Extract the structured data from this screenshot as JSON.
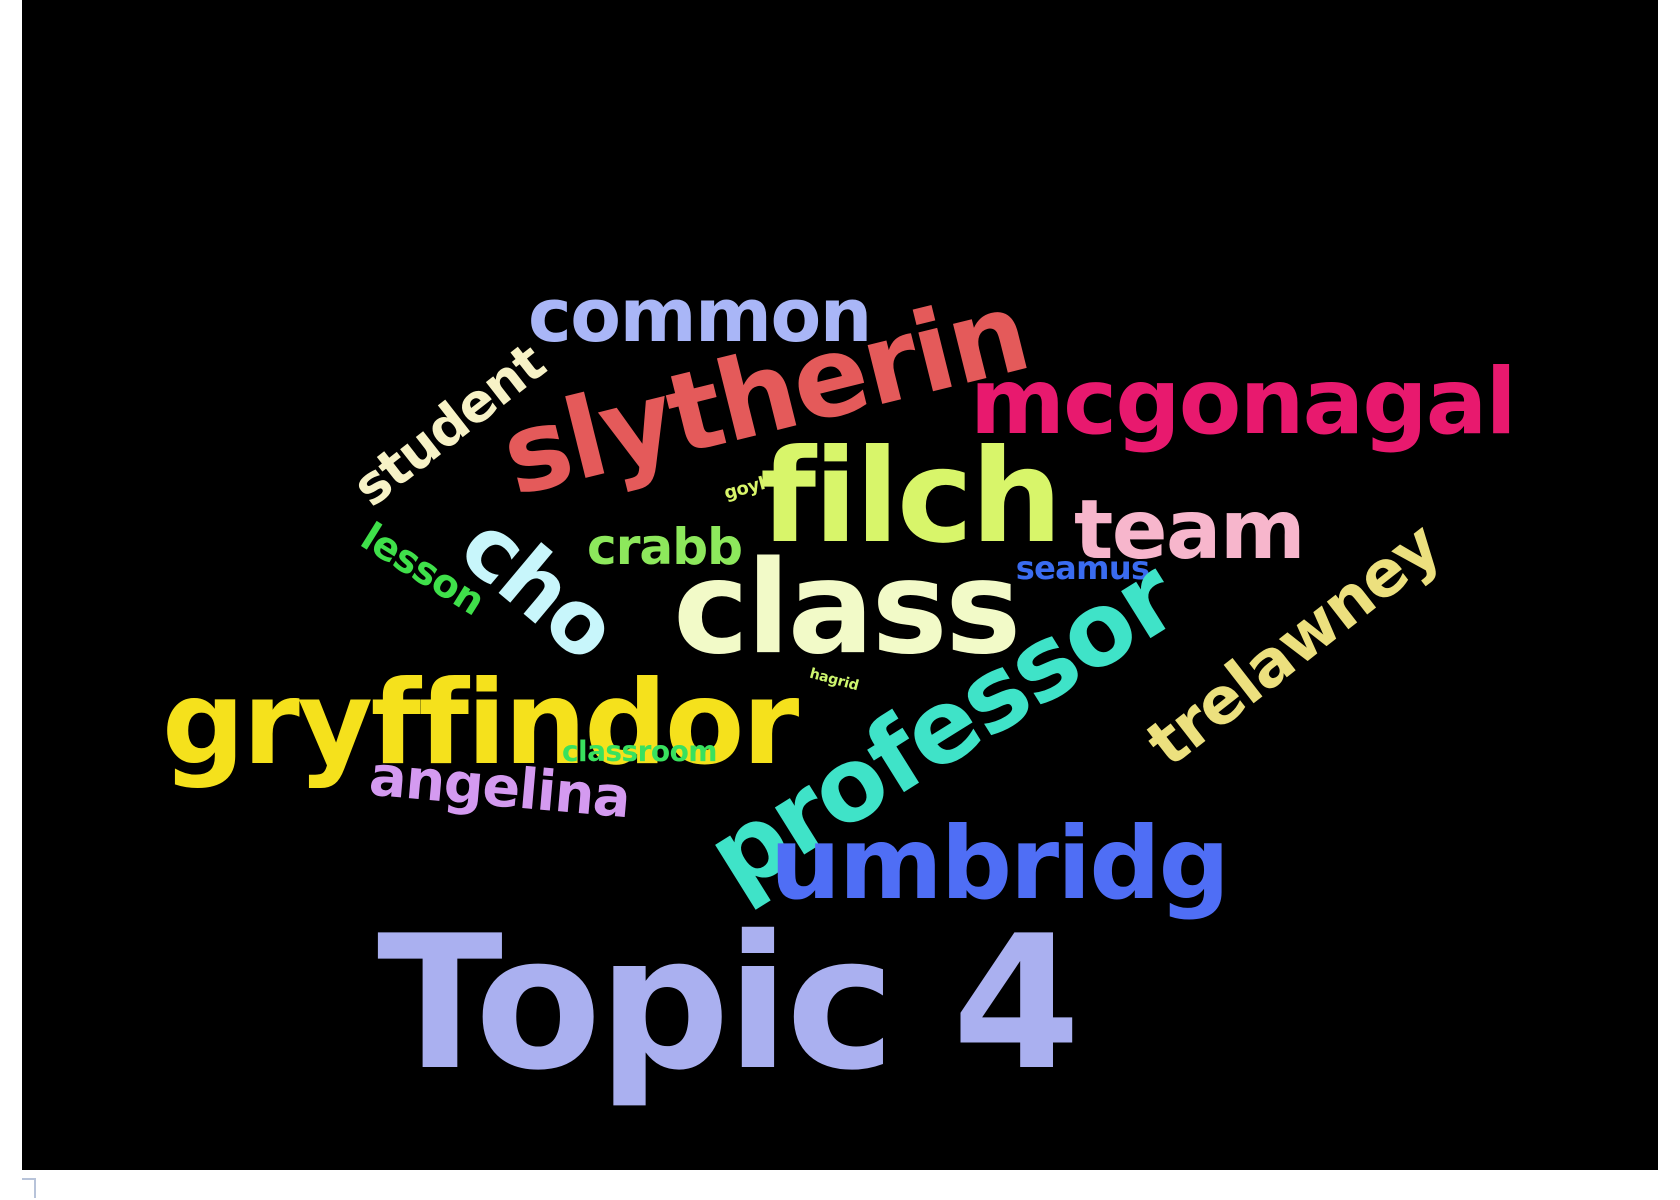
{
  "wordcloud": {
    "background": "#000000",
    "words": [
      {
        "key": "topic",
        "text": "Topic 4",
        "color": "#aab0f0"
      },
      {
        "key": "common",
        "text": "common",
        "color": "#a9b6f7"
      },
      {
        "key": "slytherin",
        "text": "slytherin",
        "color": "#e45a5a"
      },
      {
        "key": "mcgonagal",
        "text": "mcgonagal",
        "color": "#e8196e"
      },
      {
        "key": "student",
        "text": "student",
        "color": "#f7f2c6"
      },
      {
        "key": "filch",
        "text": "filch",
        "color": "#d8f56a"
      },
      {
        "key": "goyl",
        "text": "goyl",
        "color": "#d8f56a"
      },
      {
        "key": "cho",
        "text": "cho",
        "color": "#c8f6fb"
      },
      {
        "key": "team",
        "text": "team",
        "color": "#f7b6cc"
      },
      {
        "key": "crabb",
        "text": "crabb",
        "color": "#8de85c"
      },
      {
        "key": "lesson",
        "text": "lesson",
        "color": "#3fe04a"
      },
      {
        "key": "class",
        "text": "class",
        "color": "#f2fac8"
      },
      {
        "key": "seamus",
        "text": "seamus",
        "color": "#3a6cf0"
      },
      {
        "key": "trelawney",
        "text": "trelawney",
        "color": "#ece07e"
      },
      {
        "key": "professor",
        "text": "professor",
        "color": "#3fe3c8"
      },
      {
        "key": "gryffindor",
        "text": "gryffindor",
        "color": "#f5e11c"
      },
      {
        "key": "hagrid",
        "text": "hagrid",
        "color": "#cdf56e"
      },
      {
        "key": "classroom",
        "text": "classroom",
        "color": "#39e15e"
      },
      {
        "key": "angelina",
        "text": "angelina",
        "color": "#d49af0"
      },
      {
        "key": "umbridg",
        "text": "umbridg",
        "color": "#4f6ef5"
      }
    ]
  }
}
